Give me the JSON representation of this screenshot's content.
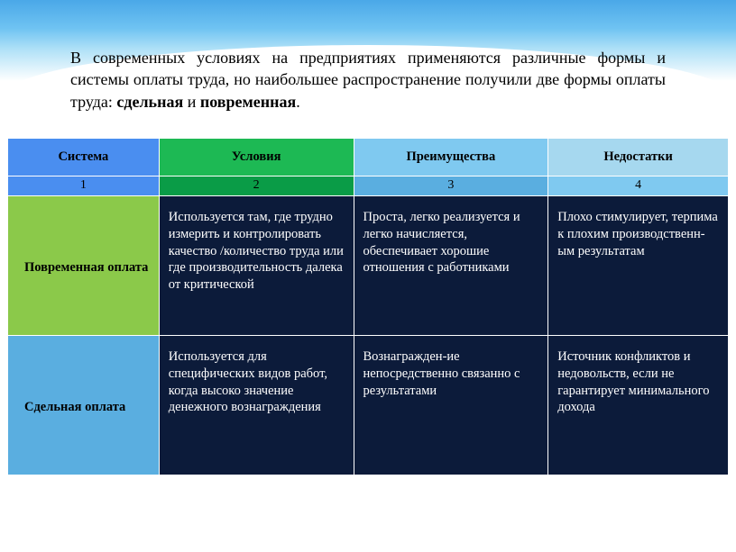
{
  "intro": {
    "text_prefix": "В современных условиях на предприятиях применяются различные формы и системы оплаты труда, но наибольшее распространение получили две формы оплаты труда: ",
    "bold1": "сдельная",
    "mid": " и ",
    "bold2": "повременная",
    "suffix": "."
  },
  "table": {
    "headers": [
      "Система",
      "Условия",
      "Преимущества",
      "Недостатки"
    ],
    "numbers": [
      "1",
      "2",
      "3",
      "4"
    ],
    "header_bg": [
      "#4a8ef0",
      "#1db954",
      "#7fc9f0",
      "#a6d8ef"
    ],
    "number_bg": [
      "#4a8ef0",
      "#0a9c47",
      "#5aaee0",
      "#7fc9f0"
    ],
    "rows": [
      {
        "label": "Повременная оплата",
        "label_bg": "#8bc94a",
        "cells": [
          "Используется там, где трудно измерить и контролировать качество /количество труда или где производительность далека от критической",
          "Проста, легко реализуется и легко начисляется, обеспечивает хорошие отношения с работниками",
          "Плохо стимулирует, терпима к плохим производственн-ым результатам"
        ]
      },
      {
        "label": "Сдельная оплата ",
        "label_bg": "#5aaee0",
        "cells": [
          "Используется для специфических видов работ, когда высоко значение денежного вознаграждения",
          "Вознагражден-ие непосредственно связанно с результатами",
          "Источник конфликтов и недовольств, если не гарантирует минимального дохода"
        ]
      }
    ],
    "body_bg": "#0c1b3a"
  }
}
